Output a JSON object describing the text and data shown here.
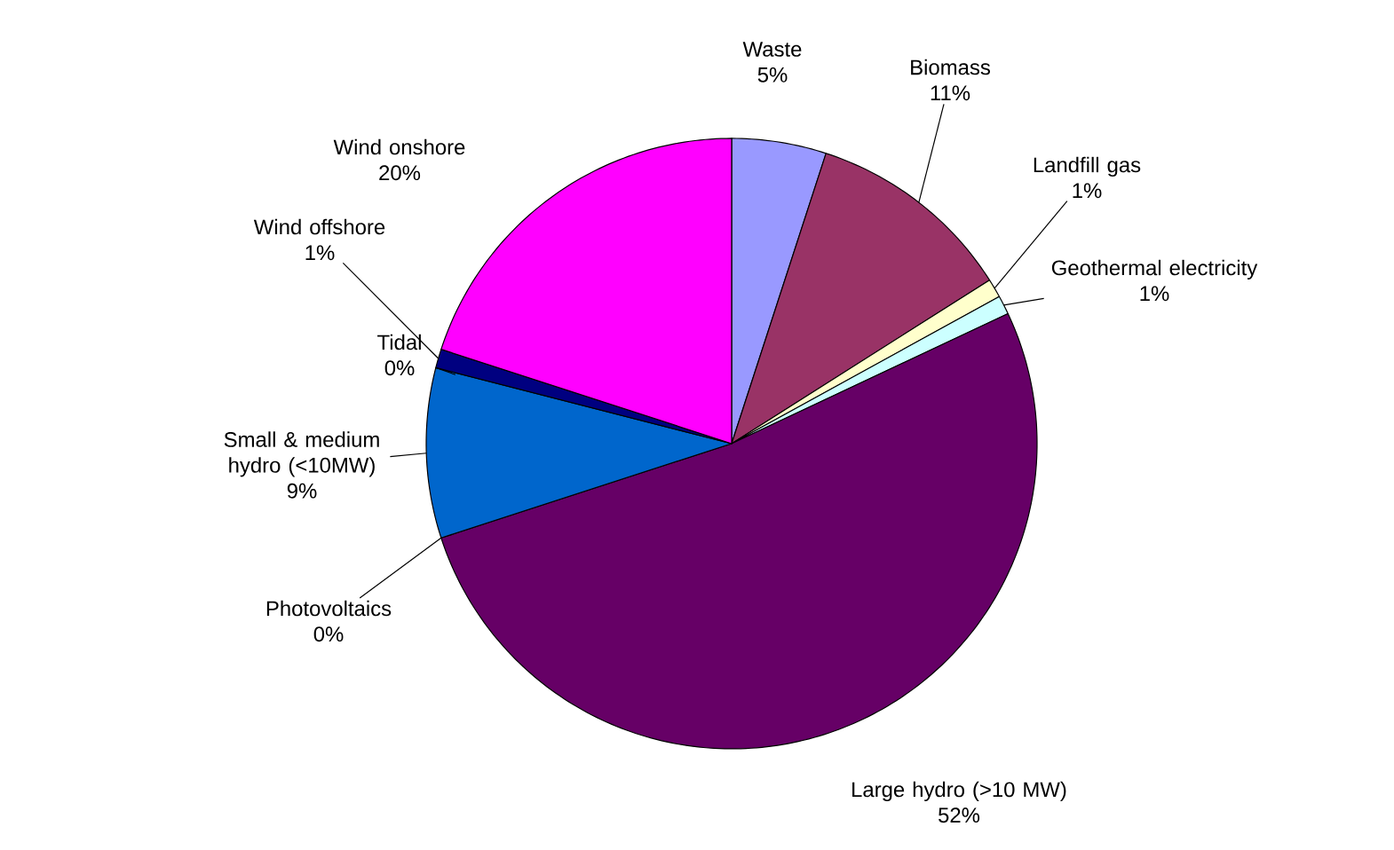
{
  "chart_data": {
    "type": "pie",
    "categories": [
      "Waste",
      "Biomass",
      "Landfill gas",
      "Geothermal electricity",
      "Large hydro (>10 MW)",
      "Photovoltaics",
      "Small & medium hydro (<10MW)",
      "Tidal",
      "Wind offshore",
      "Wind onshore"
    ],
    "values": [
      5,
      11,
      1,
      1,
      52,
      0,
      9,
      0,
      1,
      20
    ],
    "colors": [
      "#9999ff",
      "#993366",
      "#ffffcc",
      "#ccffff",
      "#660066",
      "#ff8080",
      "#0066cc",
      "#ccccff",
      "#000080",
      "#ff00ff"
    ],
    "value_labels": [
      "5%",
      "11%",
      "1%",
      "1%",
      "52%",
      "0%",
      "9%",
      "0%",
      "1%",
      "20%"
    ]
  }
}
